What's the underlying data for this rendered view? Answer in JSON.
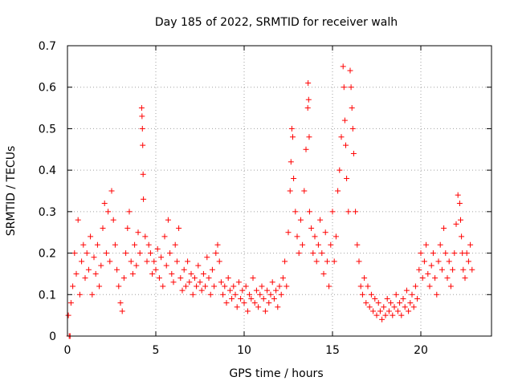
{
  "chart_data": {
    "type": "scatter",
    "title": "Day 185 of 2022, SRMTID for receiver walh",
    "xlabel": "GPS time / hours",
    "ylabel": "SRMTID / TECUs",
    "xlim": [
      0,
      24
    ],
    "ylim": [
      0,
      0.7
    ],
    "xticks": [
      0,
      5,
      10,
      15,
      20
    ],
    "yticks": [
      0,
      0.1,
      0.2,
      0.3,
      0.4,
      0.5,
      0.6,
      0.7
    ],
    "xtick_labels": [
      "0",
      "5",
      "10",
      "15",
      "20"
    ],
    "ytick_labels": [
      "0",
      "0.1",
      "0.2",
      "0.3",
      "0.4",
      "0.5",
      "0.6",
      "0.7"
    ],
    "grid": true,
    "marker": "+",
    "color": "#ff0000",
    "series": [
      {
        "name": "SRMTID",
        "x": [
          0.05,
          0.1,
          0.15,
          0.2,
          0.3,
          0.4,
          0.5,
          0.6,
          0.7,
          0.8,
          0.9,
          1.0,
          1.1,
          1.2,
          1.3,
          1.4,
          1.5,
          1.6,
          1.7,
          1.8,
          1.9,
          2.0,
          2.1,
          2.2,
          2.3,
          2.4,
          2.5,
          2.6,
          2.7,
          2.8,
          2.9,
          3.0,
          3.1,
          3.2,
          3.3,
          3.4,
          3.5,
          3.6,
          3.7,
          3.8,
          3.9,
          4.0,
          4.1,
          4.2,
          4.22,
          4.24,
          4.26,
          4.28,
          4.3,
          4.4,
          4.5,
          4.6,
          4.7,
          4.8,
          4.9,
          5.0,
          5.1,
          5.2,
          5.3,
          5.4,
          5.5,
          5.6,
          5.7,
          5.8,
          5.9,
          6.0,
          6.1,
          6.2,
          6.3,
          6.4,
          6.5,
          6.6,
          6.7,
          6.8,
          6.9,
          7.0,
          7.1,
          7.2,
          7.3,
          7.4,
          7.5,
          7.6,
          7.7,
          7.8,
          7.9,
          8.0,
          8.1,
          8.2,
          8.3,
          8.4,
          8.5,
          8.6,
          8.7,
          8.8,
          8.9,
          9.0,
          9.1,
          9.2,
          9.3,
          9.4,
          9.5,
          9.6,
          9.7,
          9.8,
          9.9,
          10.0,
          10.1,
          10.2,
          10.3,
          10.4,
          10.5,
          10.6,
          10.7,
          10.8,
          10.9,
          11.0,
          11.1,
          11.2,
          11.3,
          11.4,
          11.5,
          11.6,
          11.7,
          11.8,
          11.9,
          12.0,
          12.1,
          12.2,
          12.3,
          12.4,
          12.5,
          12.6,
          12.65,
          12.7,
          12.75,
          12.8,
          12.9,
          13.0,
          13.1,
          13.2,
          13.3,
          13.4,
          13.5,
          13.6,
          13.62,
          13.65,
          13.68,
          13.7,
          13.8,
          13.9,
          14.0,
          14.1,
          14.2,
          14.3,
          14.4,
          14.5,
          14.6,
          14.7,
          14.8,
          14.9,
          15.0,
          15.1,
          15.2,
          15.3,
          15.4,
          15.5,
          15.6,
          15.65,
          15.7,
          15.75,
          15.8,
          15.9,
          16.0,
          16.05,
          16.1,
          16.15,
          16.2,
          16.3,
          16.4,
          16.5,
          16.6,
          16.7,
          16.8,
          16.9,
          17.0,
          17.1,
          17.2,
          17.3,
          17.4,
          17.5,
          17.6,
          17.7,
          17.8,
          17.9,
          18.0,
          18.1,
          18.2,
          18.3,
          18.4,
          18.5,
          18.6,
          18.7,
          18.8,
          18.9,
          19.0,
          19.1,
          19.2,
          19.3,
          19.4,
          19.5,
          19.6,
          19.7,
          19.8,
          19.9,
          20.0,
          20.1,
          20.2,
          20.3,
          20.4,
          20.5,
          20.6,
          20.7,
          20.8,
          20.9,
          21.0,
          21.1,
          21.2,
          21.3,
          21.4,
          21.5,
          21.6,
          21.7,
          21.8,
          21.9,
          22.0,
          22.1,
          22.2,
          22.25,
          22.3,
          22.35,
          22.4,
          22.5,
          22.6,
          22.7,
          22.8,
          22.9
        ],
        "y": [
          0.05,
          0.0,
          0.0,
          0.08,
          0.12,
          0.2,
          0.15,
          0.28,
          0.1,
          0.18,
          0.22,
          0.14,
          0.2,
          0.16,
          0.24,
          0.1,
          0.19,
          0.15,
          0.22,
          0.12,
          0.17,
          0.26,
          0.32,
          0.2,
          0.3,
          0.18,
          0.35,
          0.28,
          0.22,
          0.16,
          0.12,
          0.08,
          0.06,
          0.14,
          0.2,
          0.26,
          0.3,
          0.18,
          0.15,
          0.22,
          0.17,
          0.25,
          0.2,
          0.55,
          0.53,
          0.5,
          0.46,
          0.39,
          0.33,
          0.24,
          0.18,
          0.22,
          0.2,
          0.15,
          0.18,
          0.16,
          0.21,
          0.14,
          0.19,
          0.12,
          0.24,
          0.17,
          0.28,
          0.2,
          0.15,
          0.13,
          0.22,
          0.18,
          0.26,
          0.14,
          0.11,
          0.16,
          0.12,
          0.18,
          0.13,
          0.15,
          0.1,
          0.14,
          0.12,
          0.17,
          0.13,
          0.11,
          0.15,
          0.12,
          0.19,
          0.14,
          0.1,
          0.16,
          0.12,
          0.2,
          0.22,
          0.18,
          0.13,
          0.1,
          0.12,
          0.08,
          0.14,
          0.11,
          0.09,
          0.12,
          0.1,
          0.07,
          0.13,
          0.09,
          0.11,
          0.08,
          0.12,
          0.06,
          0.1,
          0.09,
          0.14,
          0.08,
          0.11,
          0.07,
          0.1,
          0.12,
          0.09,
          0.06,
          0.11,
          0.08,
          0.1,
          0.13,
          0.09,
          0.11,
          0.07,
          0.12,
          0.1,
          0.14,
          0.18,
          0.12,
          0.25,
          0.35,
          0.42,
          0.5,
          0.48,
          0.38,
          0.3,
          0.24,
          0.2,
          0.28,
          0.22,
          0.35,
          0.45,
          0.55,
          0.61,
          0.57,
          0.48,
          0.3,
          0.26,
          0.2,
          0.24,
          0.18,
          0.22,
          0.28,
          0.2,
          0.15,
          0.25,
          0.18,
          0.12,
          0.22,
          0.3,
          0.18,
          0.24,
          0.35,
          0.4,
          0.48,
          0.65,
          0.6,
          0.52,
          0.46,
          0.38,
          0.3,
          0.64,
          0.6,
          0.55,
          0.5,
          0.44,
          0.3,
          0.22,
          0.18,
          0.12,
          0.1,
          0.14,
          0.08,
          0.12,
          0.07,
          0.1,
          0.06,
          0.09,
          0.05,
          0.08,
          0.06,
          0.04,
          0.07,
          0.05,
          0.09,
          0.06,
          0.08,
          0.05,
          0.07,
          0.1,
          0.06,
          0.08,
          0.05,
          0.09,
          0.07,
          0.11,
          0.06,
          0.08,
          0.1,
          0.07,
          0.12,
          0.09,
          0.16,
          0.2,
          0.14,
          0.18,
          0.22,
          0.15,
          0.12,
          0.17,
          0.2,
          0.14,
          0.1,
          0.18,
          0.22,
          0.16,
          0.26,
          0.2,
          0.14,
          0.18,
          0.12,
          0.16,
          0.2,
          0.27,
          0.34,
          0.32,
          0.28,
          0.24,
          0.2,
          0.16,
          0.14,
          0.2,
          0.18,
          0.22,
          0.16
        ]
      }
    ]
  }
}
